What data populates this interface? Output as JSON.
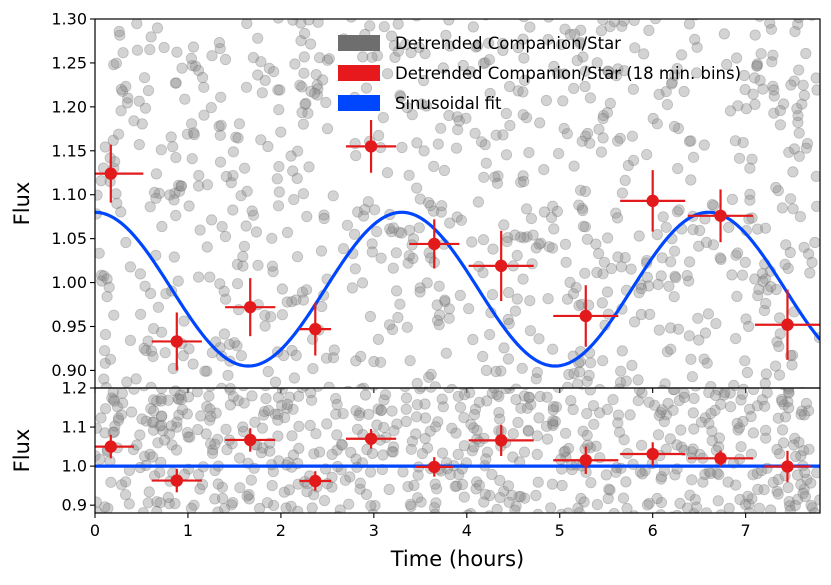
{
  "chart_data": [
    {
      "type": "scatter",
      "panel": "top",
      "ylabel": "Flux",
      "xlabel": "",
      "xlim": [
        0,
        7.8
      ],
      "ylim": [
        0.88,
        1.3
      ],
      "xticks": [
        0,
        1,
        2,
        3,
        4,
        5,
        6,
        7
      ],
      "yticks": [
        0.9,
        0.95,
        1.0,
        1.05,
        1.1,
        1.15,
        1.2,
        1.25,
        1.3
      ],
      "ytick_labels": [
        "0.90",
        "0.95",
        "1.00",
        "1.05",
        "1.10",
        "1.15",
        "1.20",
        "1.25",
        "1.30"
      ],
      "legend": {
        "position": "top-center",
        "entries": [
          {
            "label": "Detrended Companion/Star",
            "color": "#6e6e6e"
          },
          {
            "label": "Detrended Companion/Star (18 min. bins)",
            "color": "#e8191c"
          },
          {
            "label": "Sinusoidal fit",
            "color": "#0046ff"
          }
        ]
      },
      "series": [
        {
          "name": "Detrended Companion/Star (18 min. bins)",
          "color": "#e31a1c",
          "x": [
            0.17,
            0.88,
            1.67,
            2.37,
            2.97,
            3.65,
            4.37,
            5.28,
            6.0,
            6.73,
            7.45
          ],
          "y": [
            1.124,
            0.933,
            0.972,
            0.947,
            1.155,
            1.044,
            1.019,
            0.962,
            1.093,
            1.076,
            0.952
          ],
          "xerr": [
            0.35,
            0.27,
            0.27,
            0.17,
            0.27,
            0.27,
            0.35,
            0.35,
            0.35,
            0.35,
            0.35
          ],
          "yerr": [
            0.033,
            0.033,
            0.033,
            0.03,
            0.03,
            0.028,
            0.04,
            0.035,
            0.035,
            0.03,
            0.04
          ]
        },
        {
          "name": "Sinusoidal fit",
          "color": "#0046ff",
          "model": "sine",
          "offset": 0.9925,
          "amplitude": 0.0875,
          "period_hours": 3.3,
          "peak_at_hours": 0.0
        }
      ]
    },
    {
      "type": "scatter",
      "panel": "bottom",
      "ylabel": "Flux",
      "xlabel": "Time (hours)",
      "xlim": [
        0,
        7.8
      ],
      "ylim": [
        0.88,
        1.2
      ],
      "xticks": [
        0,
        1,
        2,
        3,
        4,
        5,
        6,
        7
      ],
      "xtick_labels": [
        "0",
        "1",
        "2",
        "3",
        "4",
        "5",
        "6",
        "7"
      ],
      "yticks": [
        0.9,
        1.0,
        1.1,
        1.2
      ],
      "ytick_labels": [
        "0.9",
        "1.0",
        "1.1",
        "1.2"
      ],
      "series": [
        {
          "name": "Detrended Companion/Star (18 min. bins)",
          "color": "#e31a1c",
          "x": [
            0.17,
            0.88,
            1.67,
            2.37,
            2.97,
            3.65,
            4.37,
            5.28,
            6.0,
            6.73,
            7.45
          ],
          "y": [
            1.05,
            0.963,
            1.067,
            0.962,
            1.07,
            0.998,
            1.066,
            1.015,
            1.031,
            1.02,
            0.999
          ],
          "xerr": [
            0.25,
            0.27,
            0.27,
            0.17,
            0.27,
            0.2,
            0.35,
            0.35,
            0.35,
            0.35,
            0.25
          ],
          "yerr": [
            0.03,
            0.03,
            0.03,
            0.025,
            0.025,
            0.025,
            0.04,
            0.035,
            0.03,
            0.02,
            0.04
          ]
        },
        {
          "name": "Sinusoidal fit",
          "color": "#0046ff",
          "model": "constant",
          "value": 1.0
        }
      ]
    }
  ]
}
